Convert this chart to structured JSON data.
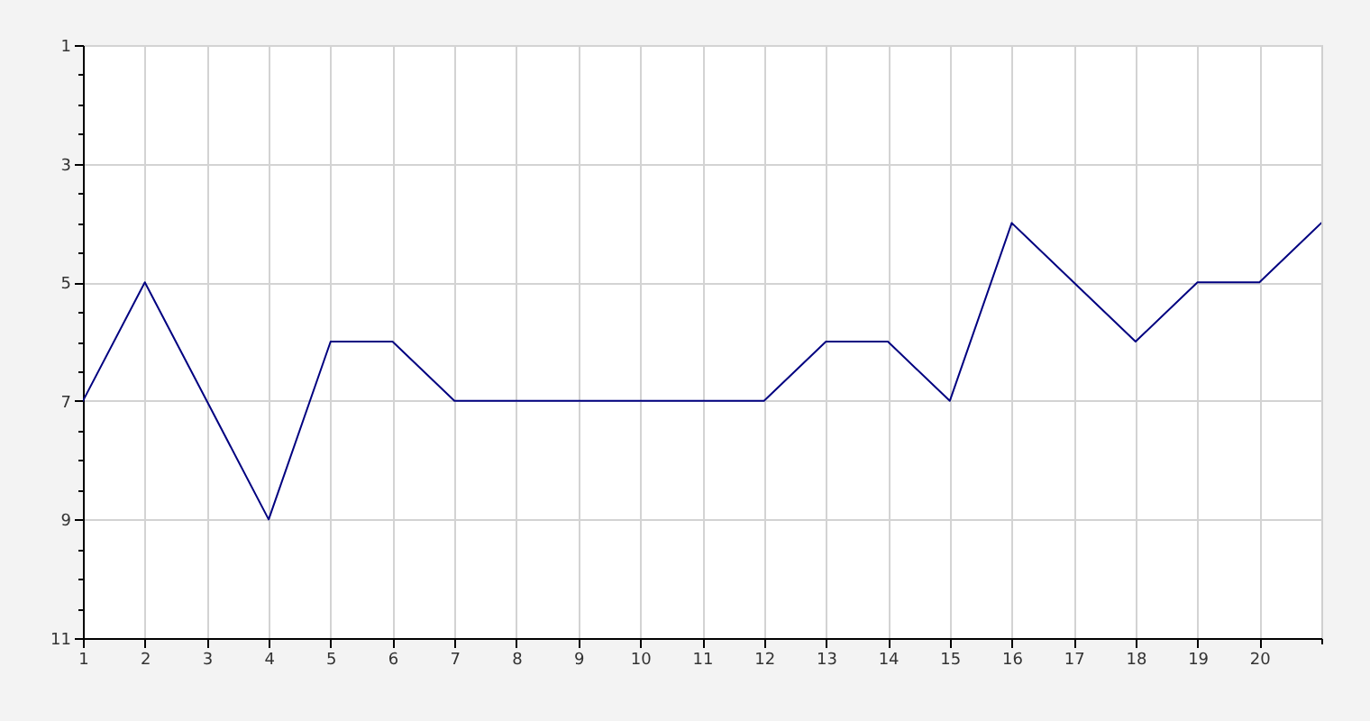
{
  "chart_data": {
    "type": "line",
    "x": [
      1,
      2,
      3,
      4,
      5,
      6,
      7,
      8,
      9,
      10,
      11,
      12,
      13,
      14,
      15,
      16,
      17,
      18,
      19,
      20,
      21
    ],
    "values": [
      7,
      5,
      7,
      9,
      6,
      6,
      7,
      7,
      7,
      7,
      7,
      7,
      6,
      6,
      7,
      4,
      5,
      6,
      5,
      5,
      4
    ],
    "color": "#000080",
    "xlim": [
      1,
      21
    ],
    "xticks": [
      1,
      2,
      3,
      4,
      5,
      6,
      7,
      8,
      9,
      10,
      11,
      12,
      13,
      14,
      15,
      16,
      17,
      18,
      19,
      20,
      {
        "value": 21,
        "label": null
      }
    ],
    "ylim": [
      11,
      1
    ],
    "yticks": [
      1,
      {
        "value": 1.5,
        "label": null
      },
      {
        "value": 2,
        "label": null
      },
      {
        "value": 2.5,
        "label": null
      },
      3,
      {
        "value": 3.5,
        "label": null
      },
      {
        "value": 4,
        "label": null
      },
      {
        "value": 4.5,
        "label": null
      },
      5,
      {
        "value": 5.5,
        "label": null
      },
      {
        "value": 6,
        "label": null
      },
      {
        "value": 6.5,
        "label": null
      },
      7,
      {
        "value": 7.5,
        "label": null
      },
      {
        "value": 8,
        "label": null
      },
      {
        "value": 8.5,
        "label": null
      },
      9,
      {
        "value": 9.5,
        "label": null
      },
      {
        "value": 10,
        "label": null
      },
      {
        "value": 10.5,
        "label": null
      },
      11
    ],
    "grid": true,
    "line_style": "solid"
  }
}
